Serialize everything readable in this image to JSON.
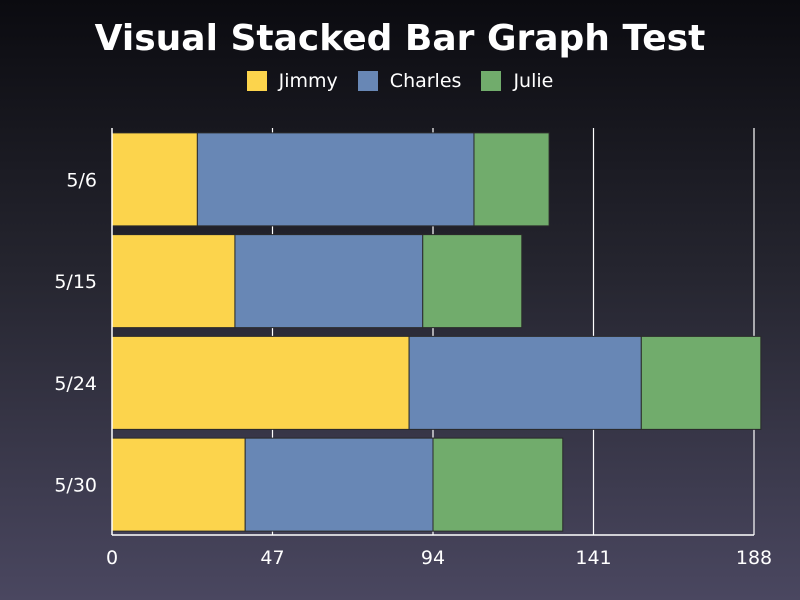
{
  "chart_data": {
    "type": "bar",
    "orientation": "horizontal",
    "stacked": true,
    "title": "Visual Stacked Bar Graph Test",
    "categories": [
      "5/6",
      "5/15",
      "5/24",
      "5/30"
    ],
    "series": [
      {
        "name": "Jimmy",
        "color": "#fcd44c",
        "values": [
          25,
          36,
          87,
          39
        ]
      },
      {
        "name": "Charles",
        "color": "#6887b5",
        "values": [
          81,
          55,
          68,
          55
        ]
      },
      {
        "name": "Julie",
        "color": "#71ac6c",
        "values": [
          22,
          29,
          35,
          38
        ]
      }
    ],
    "x_ticks": [
      "0",
      "47",
      "94",
      "141",
      "188"
    ],
    "xlim": [
      0,
      188
    ],
    "grid": "vertical",
    "legend": "top"
  }
}
